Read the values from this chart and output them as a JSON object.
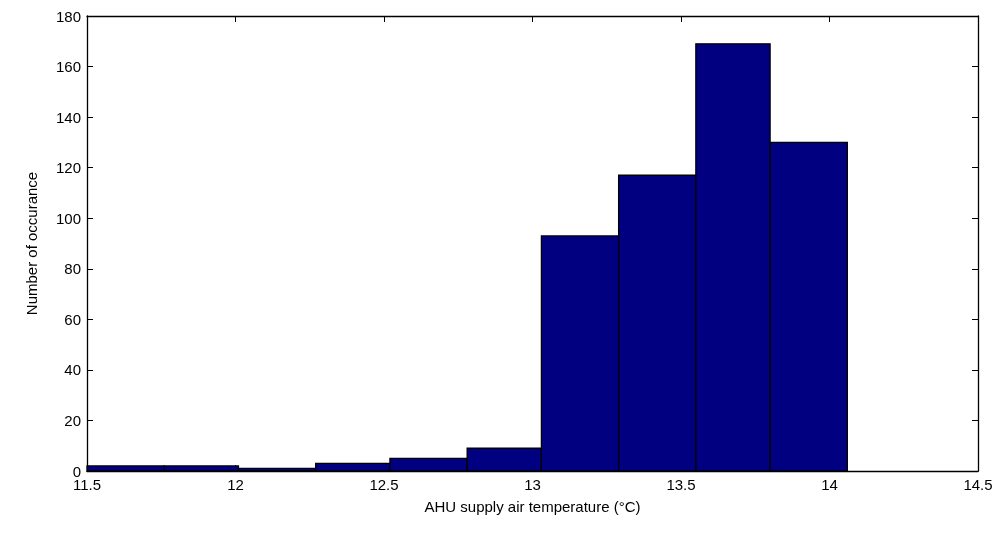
{
  "chart_data": {
    "type": "histogram",
    "xlabel": "AHU supply air temperature (°C)",
    "ylabel": "Number of occurance",
    "bins": [
      11.5,
      11.76,
      12.01,
      12.27,
      12.52,
      12.78,
      13.03,
      13.29,
      13.55,
      13.8,
      14.06
    ],
    "values": [
      2,
      2,
      1,
      3,
      5,
      9,
      93,
      117,
      169,
      130
    ],
    "color": "#000080",
    "xlim": [
      11.5,
      14.5
    ],
    "xticks": [
      11.5,
      12,
      12.5,
      13,
      13.5,
      14,
      14.5
    ],
    "ylim": [
      0,
      180
    ],
    "yticks": [
      0,
      20,
      40,
      60,
      80,
      100,
      120,
      140,
      160,
      180
    ],
    "grid": false
  }
}
